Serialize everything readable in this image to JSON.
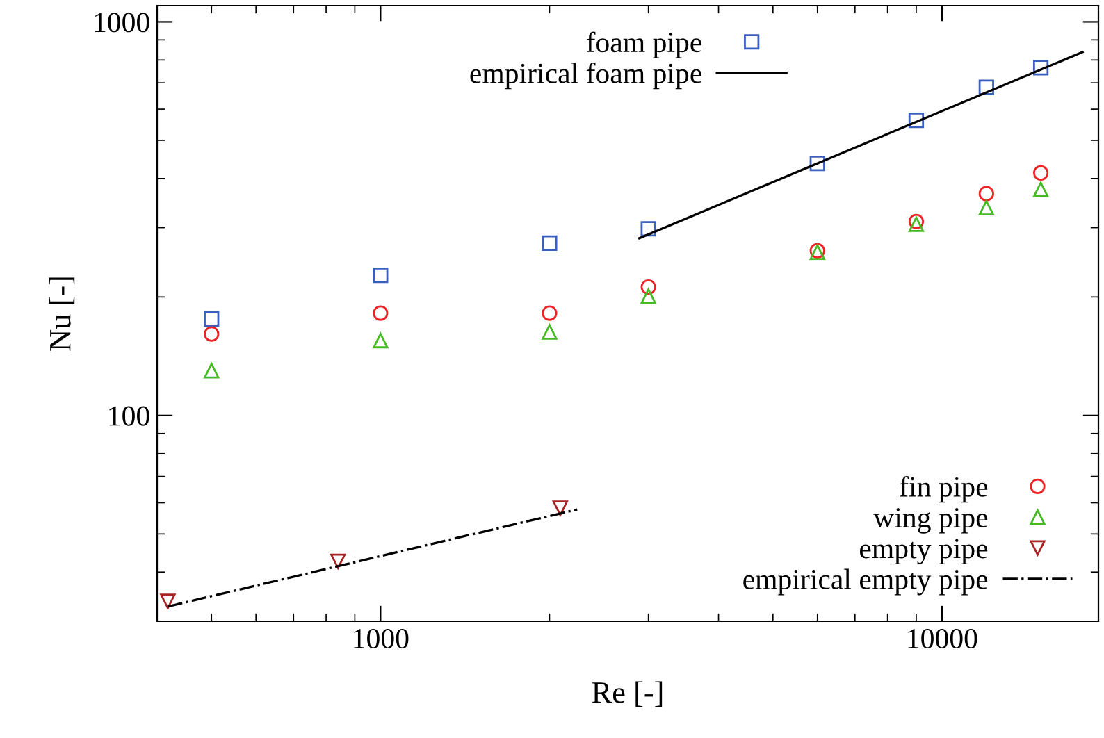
{
  "chart_data": {
    "type": "scatter",
    "xlabel": "Re [-]",
    "ylabel": "Nu [-]",
    "log": "xy",
    "xlim": [
      400,
      19000
    ],
    "ylim": [
      30,
      1100
    ],
    "xticks": [
      1000,
      10000
    ],
    "yticks": [
      100,
      1000
    ],
    "legend": "bottom right",
    "grid": false,
    "series": [
      {
        "name": "foam pipe",
        "marker": "square",
        "color": "#3a5fbf",
        "x": [
          500,
          1000,
          2000,
          3000,
          6000,
          9000,
          12000,
          15000
        ],
        "values": [
          176,
          227,
          274,
          298,
          437,
          562,
          682,
          765
        ]
      },
      {
        "name": "empirical foam pipe",
        "type": "line",
        "marker": "none",
        "line_style": "solid",
        "color": "#000000",
        "x": [
          2890,
          17800
        ],
        "values": [
          282,
          838
        ]
      },
      {
        "name": "fin pipe",
        "marker": "circle",
        "color": "#ee2222",
        "x": [
          500,
          1000,
          2000,
          3000,
          6000,
          9000,
          12000,
          15000
        ],
        "values": [
          161,
          182,
          182,
          212,
          262,
          311,
          366,
          413
        ]
      },
      {
        "name": "wing pipe",
        "marker": "triangle",
        "color": "#44bb22",
        "x": [
          500,
          1000,
          2000,
          3000,
          6000,
          9000,
          12000,
          15000
        ],
        "values": [
          130,
          155,
          163,
          201,
          260,
          306,
          337,
          375
        ]
      },
      {
        "name": "empty pipe",
        "marker": "triangle_down",
        "color": "#aa2222",
        "x": [
          418,
          840,
          2090
        ],
        "values": [
          33.7,
          42.6,
          58.1
        ]
      },
      {
        "name": "empirical empty pipe",
        "type": "line",
        "marker": "none",
        "line_style": "dashdot",
        "color": "#000000",
        "x": [
          418,
          2240
        ],
        "values": [
          32.7,
          57.7
        ]
      }
    ]
  }
}
